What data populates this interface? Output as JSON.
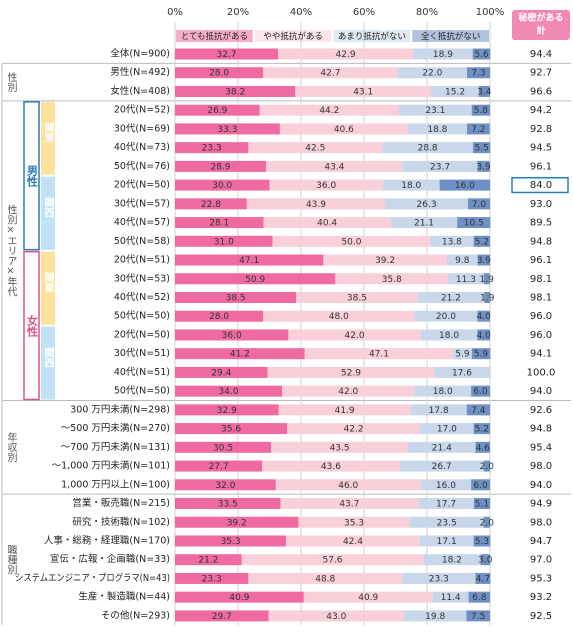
{
  "chart_data": {
    "type": "stacked-bar-horizontal",
    "categories": [
      "全体(N=900)",
      "男性(N=492)",
      "女性(N=408)",
      "20代(N=52)",
      "30代(N=69)",
      "40代(N=73)",
      "50代(N=76)",
      "20代(N=50)",
      "30代(N=57)",
      "40代(N=57)",
      "50代(N=58)",
      "20代(N=51)",
      "30代(N=53)",
      "40代(N=52)",
      "50代(N=50)",
      "20代(N=50)",
      "30代(N=51)",
      "40代(N=51)",
      "50代(N=50)",
      "300 万円未満(N=298)",
      "～500 万円未満(N=270)",
      "～700 万円未満(N=131)",
      "～1,000 万円未満(N=101)",
      "1,000 万円以上(N=100)",
      "営業・販売職(N=215)",
      "研究・技術職(N=102)",
      "人事・総務・経理職(N=170)",
      "宣伝・広報・企画職(N=33)",
      "システムエンジニア・プログラマ(N=43)",
      "生産・製造職(N=44)",
      "その他(N=293)"
    ],
    "series": [
      {
        "name": "とても抵抗がある",
        "color": "#ef6aa0",
        "values": [
          32.7,
          28.0,
          38.2,
          26.9,
          33.3,
          23.3,
          28.9,
          30.0,
          22.8,
          28.1,
          31.0,
          47.1,
          50.9,
          38.5,
          28.0,
          36.0,
          41.2,
          29.4,
          34.0,
          32.9,
          35.6,
          30.5,
          27.7,
          32.0,
          33.5,
          39.2,
          35.3,
          21.2,
          23.3,
          40.9,
          29.7
        ],
        "value_labels": [
          "32.7",
          "28.0",
          "38.2",
          "26.9",
          "33.3",
          "23.3",
          "28.9",
          "30.0",
          "22.8",
          "28.1",
          "31.0",
          "47.1",
          "50.9",
          "38.5",
          "28.0",
          "36.0",
          "41.2",
          "29.4",
          "34.0",
          "32.9",
          "35.6",
          "30.5",
          "27.7",
          "32.0",
          "33.5",
          "39.2",
          "35.3",
          "21.2",
          "23.3",
          "40.9",
          "29.7"
        ]
      },
      {
        "name": "やや抵抗がある",
        "color": "#f9cfda",
        "values": [
          42.9,
          42.7,
          43.1,
          44.2,
          40.6,
          42.5,
          43.4,
          36.0,
          43.9,
          40.4,
          50.0,
          39.2,
          35.8,
          38.5,
          48.0,
          42.0,
          47.1,
          52.9,
          42.0,
          41.9,
          42.2,
          43.5,
          43.6,
          46.0,
          43.7,
          35.3,
          42.4,
          57.6,
          48.8,
          40.9,
          43.0
        ],
        "value_labels": [
          "42.9",
          "42.7",
          "43.1",
          "44.2",
          "40.6",
          "42.5",
          "43.4",
          "36.0",
          "43.9",
          "40.4",
          "50.0",
          "39.2",
          "35.8",
          "38.5",
          "48.0",
          "42.0",
          "47.1",
          "52.9",
          "42.0",
          "41.9",
          "42.2",
          "43.5",
          "43.6",
          "46.0",
          "43.7",
          "35.3",
          "42.4",
          "57.6",
          "48.8",
          "40.9",
          "43.0"
        ]
      },
      {
        "name": "あまり抵抗がない",
        "color": "#c8d7ea",
        "values": [
          18.9,
          22.0,
          15.2,
          23.1,
          18.8,
          28.8,
          23.7,
          18.0,
          26.3,
          21.1,
          13.8,
          9.8,
          11.3,
          21.2,
          20.0,
          18.0,
          5.9,
          17.6,
          18.0,
          17.8,
          17.0,
          21.4,
          26.7,
          16.0,
          17.7,
          23.5,
          17.1,
          18.2,
          23.3,
          11.4,
          19.8
        ],
        "value_labels": [
          "18.9",
          "22.0",
          "15.2",
          "23.1",
          "18.8",
          "28.8",
          "23.7",
          "18.0",
          "26.3",
          "21.1",
          "13.8",
          "9.8",
          "11.3",
          "21.2",
          "20.0",
          "18.0",
          "5.9",
          "17.6",
          "18.0",
          "17.8",
          "17.0",
          "21.4",
          "26.7",
          "16.0",
          "17.7",
          "23.5",
          "17.1",
          "18.2",
          "23.3",
          "11.4",
          "19.8"
        ]
      },
      {
        "name": "全く抵抗がない",
        "color": "#6f90c4",
        "values": [
          5.6,
          7.3,
          3.4,
          5.8,
          7.2,
          5.5,
          3.9,
          16.0,
          7.0,
          10.5,
          5.2,
          3.9,
          1.9,
          1.9,
          4.0,
          4.0,
          5.9,
          null,
          6.0,
          7.4,
          5.2,
          4.6,
          2.0,
          6.0,
          5.1,
          2.0,
          5.3,
          3.0,
          4.7,
          6.8,
          7.5
        ],
        "value_labels": [
          "5.6",
          "7.3",
          "3.4",
          "5.8",
          "7.2",
          "5.5",
          "3.9",
          "16.0",
          "7.0",
          "10.5",
          "5.2",
          "3.9",
          "1.9",
          "1.9",
          "4.0",
          "4.0",
          "5.9",
          null,
          "6.0",
          "7.4",
          "5.2",
          "4.6",
          "2.0",
          "6.0",
          "5.1",
          "2.0",
          "5.3",
          "3.0",
          "4.7",
          "6.8",
          "7.5"
        ]
      }
    ],
    "totals": {
      "title_lines": [
        "秘密がある",
        "計"
      ],
      "values": [
        94.4,
        92.7,
        96.6,
        94.2,
        92.8,
        94.5,
        96.1,
        84.0,
        93.0,
        89.5,
        94.8,
        96.1,
        98.1,
        98.1,
        96.0,
        96.0,
        94.1,
        100.0,
        94.0,
        92.6,
        94.8,
        95.4,
        98.0,
        94.0,
        94.9,
        98.0,
        94.7,
        97.0,
        95.3,
        93.2,
        92.5
      ],
      "value_labels": [
        "94.4",
        "92.7",
        "96.6",
        "94.2",
        "92.8",
        "94.5",
        "96.1",
        "84.0",
        "93.0",
        "89.5",
        "94.8",
        "96.1",
        "98.1",
        "98.1",
        "96.0",
        "96.0",
        "94.1",
        "100.0",
        "94.0",
        "92.6",
        "94.8",
        "95.4",
        "98.0",
        "94.0",
        "94.9",
        "98.0",
        "94.7",
        "97.0",
        "95.3",
        "93.2",
        "92.5"
      ]
    },
    "row_groups": [
      "性別",
      "性別×エリア×年代",
      "年収別",
      "職種別"
    ],
    "gender_groups": [
      "男性",
      "女性"
    ],
    "area_groups": [
      "関東",
      "関西",
      "関東",
      "関西"
    ],
    "xlim": [
      0,
      100
    ],
    "xticks": [
      {
        "value": 0,
        "label": "0%"
      },
      {
        "value": 20,
        "label": "20%"
      },
      {
        "value": 40,
        "label": "40%"
      },
      {
        "value": 60,
        "label": "60%"
      },
      {
        "value": 80,
        "label": "80%"
      },
      {
        "value": 100,
        "label": "100%"
      }
    ],
    "grid": true,
    "legend": "top"
  }
}
